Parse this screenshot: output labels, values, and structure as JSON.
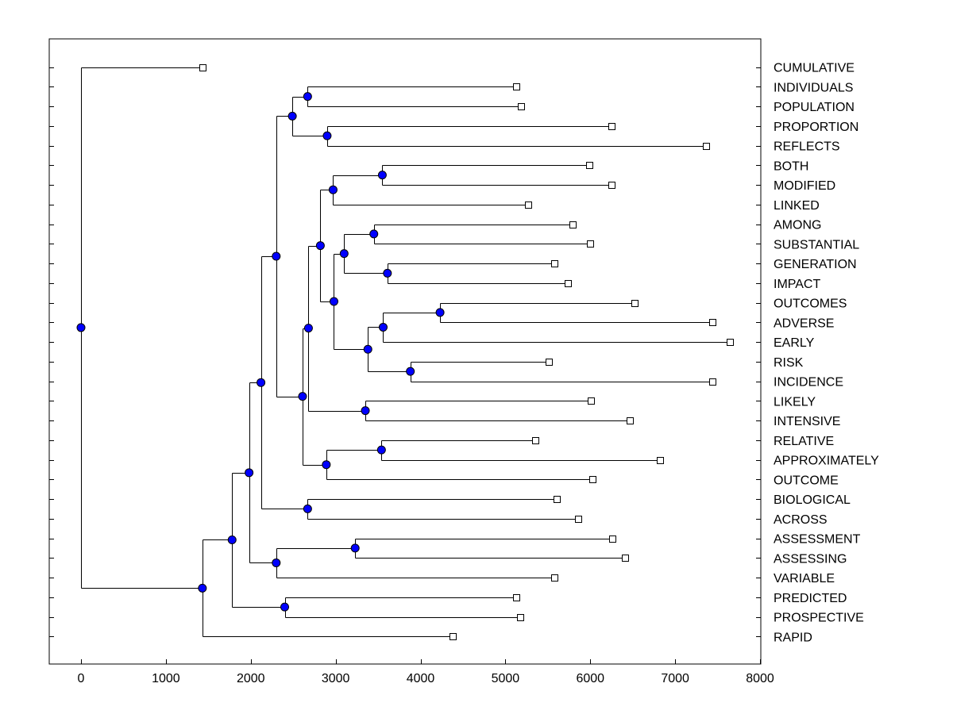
{
  "chart_data": {
    "type": "dendrogram",
    "orientation": "horizontal",
    "xlim": [
      -350,
      8000
    ],
    "x_ticks": [
      0,
      1000,
      2000,
      3000,
      4000,
      5000,
      6000,
      7000,
      8000
    ],
    "grid": false,
    "colors": {
      "axis": "#000000",
      "branch": "#000000",
      "node_fill": "#0000ff",
      "node_stroke": "#000000",
      "leaf_fill": "#ffffff",
      "leaf_stroke": "#000000"
    },
    "leaves": [
      {
        "label": "CUMULATIVE",
        "value": 1430
      },
      {
        "label": "INDIVIDUALS",
        "value": 5130
      },
      {
        "label": "POPULATION",
        "value": 5180
      },
      {
        "label": "PROPORTION",
        "value": 6250
      },
      {
        "label": "REFLECTS",
        "value": 7360
      },
      {
        "label": "BOTH",
        "value": 5990
      },
      {
        "label": "MODIFIED",
        "value": 6250
      },
      {
        "label": "LINKED",
        "value": 5270
      },
      {
        "label": "AMONG",
        "value": 5790
      },
      {
        "label": "SUBSTANTIAL",
        "value": 6000
      },
      {
        "label": "GENERATION",
        "value": 5580
      },
      {
        "label": "IMPACT",
        "value": 5740
      },
      {
        "label": "OUTCOMES",
        "value": 6520
      },
      {
        "label": "ADVERSE",
        "value": 7440
      },
      {
        "label": "EARLY",
        "value": 7640
      },
      {
        "label": "RISK",
        "value": 5510
      },
      {
        "label": "INCIDENCE",
        "value": 7440
      },
      {
        "label": "LIKELY",
        "value": 6010
      },
      {
        "label": "INTENSIVE",
        "value": 6470
      },
      {
        "label": "RELATIVE",
        "value": 5350
      },
      {
        "label": "APPROXIMATELY",
        "value": 6820
      },
      {
        "label": "OUTCOME",
        "value": 6030
      },
      {
        "label": "BIOLOGICAL",
        "value": 5600
      },
      {
        "label": "ACROSS",
        "value": 5860
      },
      {
        "label": "ASSESSMENT",
        "value": 6260
      },
      {
        "label": "ASSESSING",
        "value": 6410
      },
      {
        "label": "VARIABLE",
        "value": 5580
      },
      {
        "label": "PREDICTED",
        "value": 5130
      },
      {
        "label": "PROSPECTIVE",
        "value": 5170
      },
      {
        "label": "RAPID",
        "value": 4380
      }
    ],
    "nodes": [
      {
        "id": "n1",
        "value": 2670,
        "children": [
          "L1",
          "L2"
        ]
      },
      {
        "id": "n2",
        "value": 2900,
        "children": [
          "L3",
          "L4"
        ]
      },
      {
        "id": "n3",
        "value": 2490,
        "children": [
          "n1",
          "n2"
        ]
      },
      {
        "id": "n4",
        "value": 3550,
        "children": [
          "L5",
          "L6"
        ]
      },
      {
        "id": "n5",
        "value": 2970,
        "children": [
          "n4",
          "L7"
        ]
      },
      {
        "id": "n6",
        "value": 3450,
        "children": [
          "L8",
          "L9"
        ]
      },
      {
        "id": "n7",
        "value": 3610,
        "children": [
          "L10",
          "L11"
        ]
      },
      {
        "id": "n8",
        "value": 3100,
        "children": [
          "n6",
          "n7"
        ]
      },
      {
        "id": "n9",
        "value": 4230,
        "children": [
          "L12",
          "L13"
        ]
      },
      {
        "id": "n10",
        "value": 3560,
        "children": [
          "n9",
          "L14"
        ]
      },
      {
        "id": "n11",
        "value": 3880,
        "children": [
          "L15",
          "L16"
        ]
      },
      {
        "id": "n12",
        "value": 3380,
        "children": [
          "n10",
          "n11"
        ]
      },
      {
        "id": "n13",
        "value": 2980,
        "children": [
          "n8",
          "n12"
        ]
      },
      {
        "id": "n14",
        "value": 2820,
        "children": [
          "n5",
          "n13"
        ]
      },
      {
        "id": "n15",
        "value": 3350,
        "children": [
          "L17",
          "L18"
        ]
      },
      {
        "id": "n16",
        "value": 2680,
        "children": [
          "n14",
          "n15"
        ]
      },
      {
        "id": "n17",
        "value": 3540,
        "children": [
          "L19",
          "L20"
        ]
      },
      {
        "id": "n18",
        "value": 2890,
        "children": [
          "n17",
          "L21"
        ]
      },
      {
        "id": "n19",
        "value": 2610,
        "children": [
          "n16",
          "n18"
        ]
      },
      {
        "id": "n20",
        "value": 2300,
        "children": [
          "n3",
          "n19"
        ]
      },
      {
        "id": "n21",
        "value": 2670,
        "children": [
          "L22",
          "L23"
        ]
      },
      {
        "id": "n22",
        "value": 2120,
        "children": [
          "n20",
          "n21"
        ]
      },
      {
        "id": "n23",
        "value": 3230,
        "children": [
          "L24",
          "L25"
        ]
      },
      {
        "id": "n24",
        "value": 2300,
        "children": [
          "n23",
          "L26"
        ]
      },
      {
        "id": "n25",
        "value": 1980,
        "children": [
          "n22",
          "n24"
        ]
      },
      {
        "id": "n26",
        "value": 2400,
        "children": [
          "L27",
          "L28"
        ]
      },
      {
        "id": "n27",
        "value": 1780,
        "children": [
          "n25",
          "n26"
        ]
      },
      {
        "id": "n28",
        "value": 1430,
        "children": [
          "n27",
          "L29"
        ]
      },
      {
        "id": "root",
        "value": 0,
        "children": [
          "L0",
          "n28"
        ]
      }
    ]
  }
}
